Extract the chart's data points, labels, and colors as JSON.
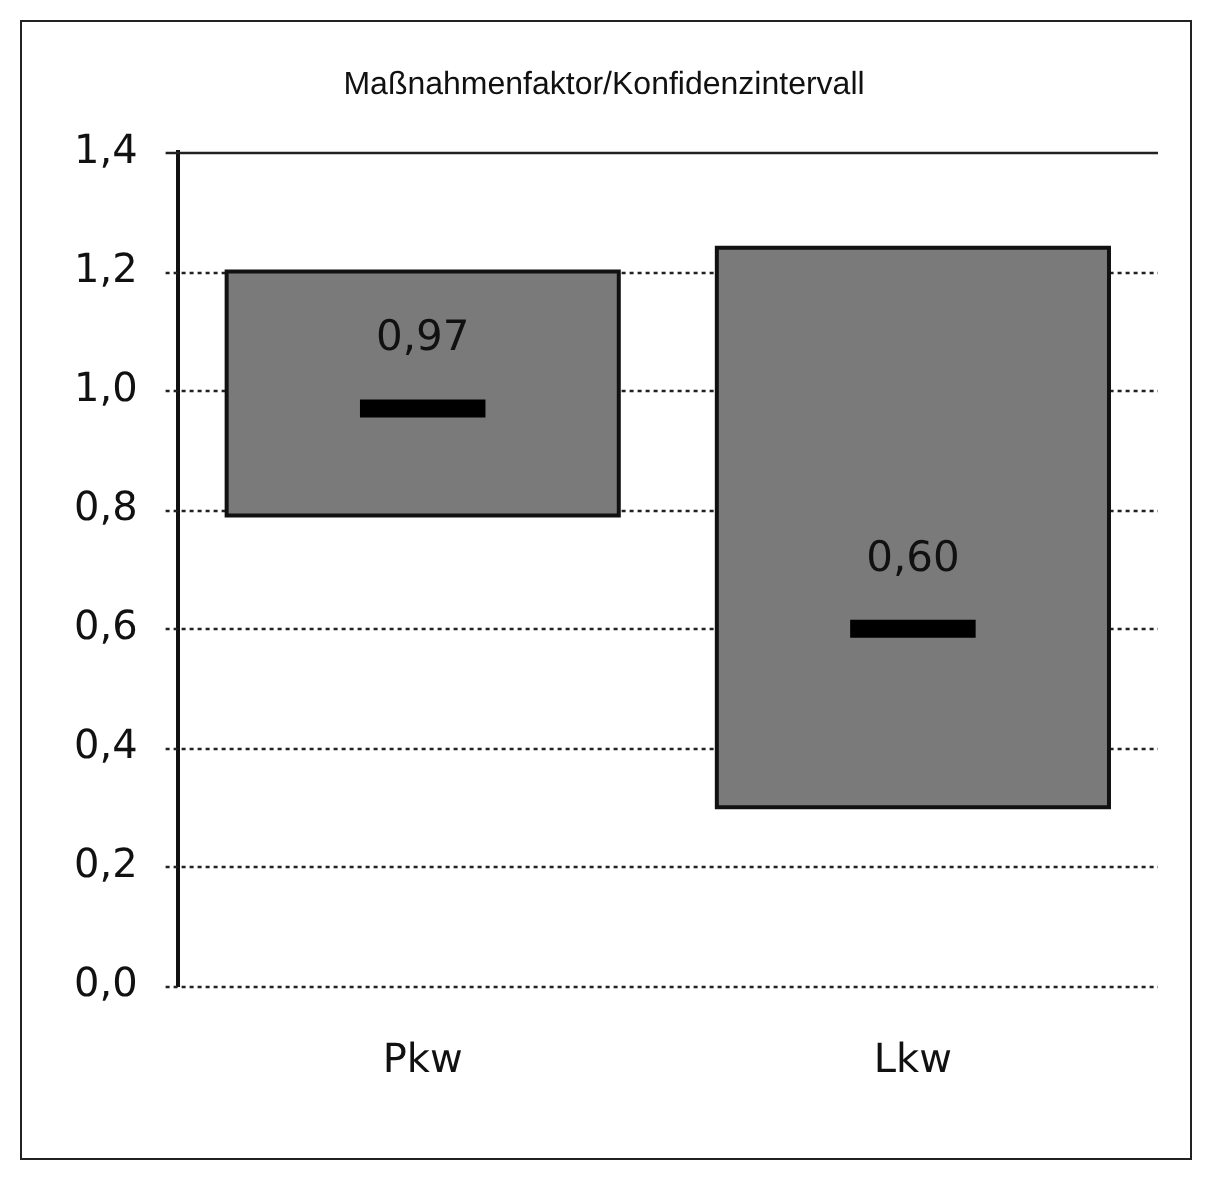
{
  "chart_data": {
    "type": "box",
    "title": "Maßnahmenfaktor/Konfidenzintervall",
    "categories": [
      "Pkw",
      "Lkw"
    ],
    "boxes": [
      {
        "low": 0.79,
        "q1": 0.79,
        "median": 0.97,
        "q3": 1.2,
        "high": 1.2
      },
      {
        "low": 0.3,
        "q1": 0.3,
        "median": 0.6,
        "q3": 1.24,
        "high": 1.24
      }
    ],
    "color": "#7a7a7a",
    "annotations": [
      {
        "text": "0,97",
        "x": "Pkw",
        "y": 0.97
      },
      {
        "text": "0,60",
        "x": "Lkw",
        "y": 0.6
      }
    ],
    "ylim": [
      0,
      1.4
    ],
    "yticks": [
      {
        "value": 0,
        "label": "0,0"
      },
      {
        "value": 0.2,
        "label": "0,2"
      },
      {
        "value": 0.4,
        "label": "0,4"
      },
      {
        "value": 0.6,
        "label": "0,6"
      },
      {
        "value": 0.8,
        "label": "0,8"
      },
      {
        "value": 1,
        "label": "1,0"
      },
      {
        "value": 1.2,
        "label": "1,2"
      },
      {
        "value": 1.4,
        "label": "1,4"
      }
    ],
    "grid": "y",
    "legend": false
  }
}
